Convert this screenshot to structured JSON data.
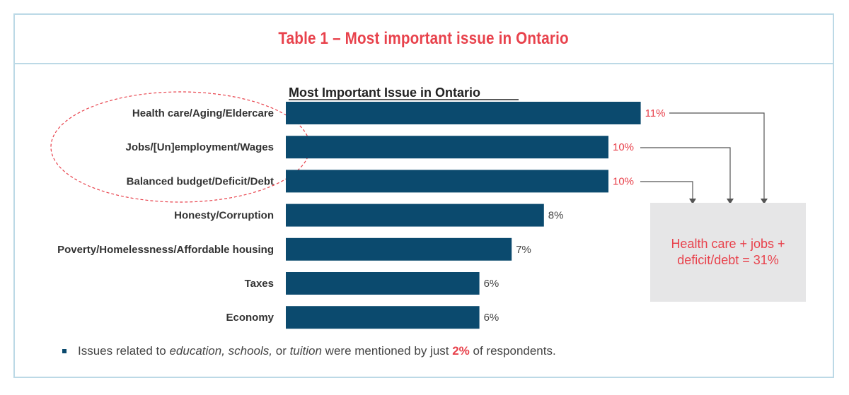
{
  "header": {
    "title": "Table 1 – Most important issue in Ontario"
  },
  "chart_data": {
    "type": "bar",
    "orientation": "horizontal",
    "title": "Most Important Issue in Ontario",
    "categories": [
      "Health care/Aging/Eldercare",
      "Jobs/[Un]employment/Wages",
      "Balanced budget/Deficit/Debt",
      "Honesty/Corruption",
      "Poverty/Homelessness/Affordable housing",
      "Taxes",
      "Economy"
    ],
    "values": [
      11,
      10,
      10,
      8,
      7,
      6,
      6
    ],
    "value_labels": [
      "11%",
      "10%",
      "10%",
      "8%",
      "7%",
      "6%",
      "6%"
    ],
    "unit": "%",
    "bar_color": "#0b4a6e",
    "highlight_label_color": "#e8424c",
    "normal_label_color": "#444444",
    "highlighted_indices": [
      0,
      1,
      2
    ],
    "grid": false,
    "legend": "none"
  },
  "callout": {
    "text": "Health care + jobs + deficit/debt = 31%"
  },
  "footnote": {
    "t1": "Issues related to ",
    "e1": "education, schools,",
    "t2": " or ",
    "e2": "tuition",
    "t3": " were mentioned by just ",
    "pct": "2%",
    "t4": " of respondents."
  },
  "colors": {
    "accent": "#e8424c",
    "bar": "#0b4a6e",
    "border": "#bcd9e6",
    "callout_bg": "#e6e6e7"
  }
}
